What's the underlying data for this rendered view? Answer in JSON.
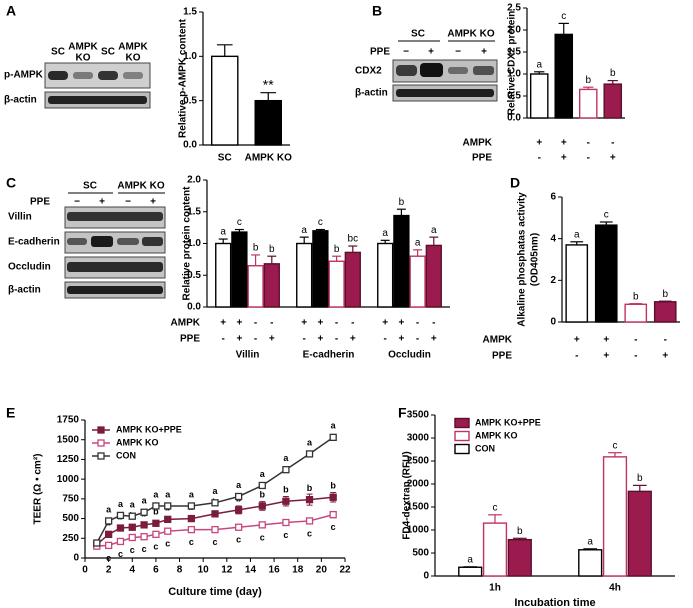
{
  "panel_labels": [
    "A",
    "B",
    "C",
    "D",
    "E",
    "F"
  ],
  "blots": [
    {
      "lanes": [
        "SC",
        "AMPK KO",
        "SC",
        "AMPK KO"
      ],
      "rows": [
        "p-AMPK",
        "β-actin"
      ]
    },
    {
      "groups": [
        "SC",
        "AMPK KO"
      ],
      "treatment": "PPE",
      "treatment_marks": [
        "−",
        "+",
        "−",
        "+"
      ],
      "rows": [
        "CDX2",
        "β-actin"
      ]
    },
    {
      "groups": [
        "SC",
        "AMPK KO"
      ],
      "treatment": "PPE",
      "treatment_marks": [
        "−",
        "+",
        "−",
        "+"
      ],
      "rows": [
        "Villin",
        "E-cadherin",
        "Occludin",
        "β-actin"
      ]
    }
  ],
  "chart_data": [
    {
      "type": "bar",
      "ylabel": "Relative p-AMPK content",
      "categories": [
        "SC",
        "AMPK KO"
      ],
      "values": [
        1.0,
        0.5
      ],
      "errors": [
        0.13,
        0.09
      ],
      "significance": [
        null,
        "**"
      ],
      "colors": [
        "#ffffff",
        "#000000"
      ],
      "edgecolors": [
        "#000000",
        "#000000"
      ],
      "ylim": [
        0,
        1.5
      ],
      "yticks": [
        {
          "value": 0,
          "label": "0.0"
        },
        0.5,
        {
          "value": 1,
          "label": "1.0"
        },
        1.5
      ]
    },
    {
      "type": "bar",
      "ylabel": "Relative CDX2 protein",
      "values": [
        1.0,
        1.9,
        0.65,
        0.77
      ],
      "errors": [
        0.05,
        0.25,
        0.05,
        0.08
      ],
      "significance": [
        "a",
        "c",
        "b",
        "b"
      ],
      "colors": [
        "#ffffff",
        "#000000",
        "#ffffff",
        "#9b1b4f"
      ],
      "edgecolors": [
        "#000000",
        "#000000",
        "#c0335f",
        "#5a0f2c"
      ],
      "conditions": [
        {
          "name": "AMPK",
          "values": [
            "+",
            "+",
            "-",
            "-"
          ]
        },
        {
          "name": "PPE",
          "values": [
            "-",
            "+",
            "-",
            "+"
          ]
        }
      ],
      "ylim": [
        0,
        2.5
      ],
      "yticks": [
        {
          "value": 0,
          "label": "0.0"
        },
        0.5,
        {
          "value": 1,
          "label": "1.0"
        },
        1.5,
        {
          "value": 2,
          "label": "2.0"
        },
        2.5
      ]
    },
    {
      "type": "bar",
      "ylabel": "Relative protein content",
      "categories": [
        "Villin",
        "E-cadherin",
        "Occludin"
      ],
      "series": [
        {
          "color": "#ffffff",
          "edgecolor": "#000000",
          "values": [
            1.0,
            1.0,
            1.0
          ],
          "errors": [
            0.07,
            0.1,
            0.05
          ],
          "significance": [
            "a",
            "a",
            "a"
          ]
        },
        {
          "color": "#000000",
          "edgecolor": "#000000",
          "values": [
            1.18,
            1.2,
            1.44
          ],
          "errors": [
            0.04,
            0.02,
            0.1
          ],
          "significance": [
            "c",
            "c",
            "b"
          ]
        },
        {
          "color": "#ffffff",
          "edgecolor": "#c0335f",
          "values": [
            0.65,
            0.72,
            0.8
          ],
          "errors": [
            0.17,
            0.08,
            0.1
          ],
          "significance": [
            "b",
            "b",
            "a"
          ]
        },
        {
          "color": "#9b1b4f",
          "edgecolor": "#5a0f2c",
          "values": [
            0.68,
            0.86,
            0.97
          ],
          "errors": [
            0.12,
            0.1,
            0.13
          ],
          "significance": [
            "b",
            "bc",
            "a"
          ]
        }
      ],
      "conditions": [
        {
          "name": "AMPK",
          "values": [
            "+",
            "+",
            "-",
            "-"
          ]
        },
        {
          "name": "PPE",
          "values": [
            "-",
            "+",
            "-",
            "+"
          ]
        }
      ],
      "ylim": [
        0,
        2.0
      ],
      "yticks": [
        {
          "value": 0,
          "label": "0.0"
        },
        0.5,
        {
          "value": 1,
          "label": "1.0"
        },
        1.5,
        {
          "value": 2,
          "label": "2.0"
        }
      ]
    },
    {
      "type": "bar",
      "ylabel": "Alkaline phosphatas activity",
      "ylabel_line2": "(OD405nm)",
      "values": [
        3.7,
        4.65,
        0.85,
        0.97
      ],
      "errors": [
        0.15,
        0.15,
        0.03,
        0.03
      ],
      "significance": [
        "a",
        "c",
        "b",
        "b"
      ],
      "colors": [
        "#ffffff",
        "#000000",
        "#ffffff",
        "#9b1b4f"
      ],
      "edgecolors": [
        "#000000",
        "#000000",
        "#c0335f",
        "#5a0f2c"
      ],
      "conditions": [
        {
          "name": "AMPK",
          "values": [
            "+",
            "+",
            "-",
            "-"
          ]
        },
        {
          "name": "PPE",
          "values": [
            "-",
            "+",
            "-",
            "+"
          ]
        }
      ],
      "ylim": [
        0,
        6
      ],
      "yticks": [
        0,
        2,
        4,
        6
      ]
    },
    {
      "type": "line",
      "xlabel": "Culture time (day)",
      "ylabel": "TEER (Ω • cm²)",
      "x": [
        1,
        2,
        3,
        4,
        5,
        6,
        7,
        9,
        11,
        13,
        15,
        17,
        19,
        21
      ],
      "series": [
        {
          "name": "AMPK KO+PPE",
          "color": "#7b1c3e",
          "marker_facecolor": "#7b1c3e",
          "values": [
            170,
            300,
            380,
            390,
            420,
            440,
            490,
            500,
            560,
            610,
            660,
            720,
            740,
            770
          ],
          "errors": [
            15,
            20,
            20,
            20,
            20,
            20,
            25,
            30,
            30,
            50,
            55,
            60,
            70,
            60
          ],
          "letters": [
            null,
            "b",
            "b",
            "b",
            "b",
            "b",
            "b",
            "b",
            "b",
            "b",
            "b",
            "b",
            "b",
            "b"
          ]
        },
        {
          "name": "AMPK KO",
          "color": "#c8467f",
          "marker_facecolor": "#ffffff",
          "values": [
            150,
            160,
            210,
            260,
            270,
            300,
            340,
            360,
            360,
            390,
            420,
            450,
            470,
            550
          ],
          "errors": [
            15,
            15,
            15,
            15,
            15,
            15,
            15,
            15,
            15,
            20,
            20,
            20,
            20,
            40
          ],
          "letters": [
            null,
            "c",
            "c",
            "c",
            "c",
            "c",
            "c",
            "c",
            "c",
            "c",
            "c",
            "c",
            "c",
            "c"
          ]
        },
        {
          "name": "CON",
          "color": "#333333",
          "marker_facecolor": "#ffffff",
          "values": [
            190,
            470,
            540,
            530,
            580,
            660,
            660,
            660,
            700,
            780,
            920,
            1120,
            1320,
            1530
          ],
          "errors": [
            15,
            20,
            20,
            20,
            20,
            20,
            20,
            20,
            20,
            20,
            25,
            25,
            30,
            30
          ],
          "letters": [
            null,
            "a",
            "a",
            "a",
            "a",
            "a",
            "a",
            "a",
            "a",
            "a",
            "a",
            "a",
            "a",
            "a"
          ]
        }
      ],
      "xlim": [
        0,
        22
      ],
      "xticks": [
        0,
        2,
        4,
        6,
        8,
        10,
        12,
        14,
        16,
        18,
        20,
        22
      ],
      "ylim": [
        0,
        1750
      ],
      "yticks": [
        0,
        250,
        500,
        750,
        1000,
        1250,
        1500,
        1750
      ]
    },
    {
      "type": "bar",
      "xlabel": "Incubation time",
      "ylabel": "FD4-dextran (RFU)",
      "categories": [
        "1h",
        "4h"
      ],
      "series": [
        {
          "name": "AMPK KO+PPE",
          "color": "#9b1b4f",
          "edgecolor": "#5a0f2c",
          "values": [
            790,
            1840
          ],
          "errors": [
            30,
            130
          ],
          "significance": [
            "b",
            "b"
          ]
        },
        {
          "name": "AMPK KO",
          "color": "#ffffff",
          "edgecolor": "#c0335f",
          "values": [
            1150,
            2590
          ],
          "errors": [
            180,
            90
          ],
          "significance": [
            "c",
            "c"
          ]
        },
        {
          "name": "CON",
          "color": "#ffffff",
          "edgecolor": "#000000",
          "values": [
            190,
            570
          ],
          "errors": [
            10,
            20
          ],
          "significance": [
            "a",
            "a"
          ]
        }
      ],
      "ylim": [
        0,
        3500
      ],
      "yticks": [
        0,
        500,
        1000,
        1500,
        2000,
        2500,
        3000,
        3500
      ]
    }
  ]
}
